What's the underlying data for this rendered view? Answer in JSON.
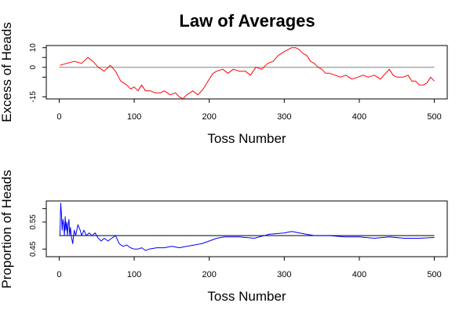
{
  "chart_data": [
    {
      "type": "line",
      "title": "Law of Averages",
      "xlabel": "Toss Number",
      "ylabel": "Excess of Heads",
      "xlim": [
        0,
        500
      ],
      "ylim": [
        -15,
        10
      ],
      "xticks": [
        0,
        100,
        200,
        300,
        400,
        500
      ],
      "yticks": [
        -15,
        -5,
        0,
        5,
        10
      ],
      "ytick_labels": [
        "-15",
        "",
        "0",
        "",
        "10"
      ],
      "reference_line": 0,
      "line_color": "#ff0000",
      "reference_color": "#808080",
      "series": [
        {
          "x": [
            1,
            10,
            20,
            30,
            38,
            45,
            52,
            60,
            68,
            75,
            82,
            90,
            95,
            100,
            105,
            110,
            115,
            122,
            128,
            135,
            140,
            148,
            155,
            160,
            165,
            170,
            178,
            185,
            192,
            200,
            205,
            210,
            218,
            225,
            232,
            240,
            248,
            255,
            262,
            270,
            278,
            285,
            292,
            300,
            305,
            310,
            315,
            320,
            325,
            330,
            335,
            340,
            345,
            350,
            355,
            360,
            368,
            375,
            382,
            390,
            398,
            405,
            412,
            420,
            428,
            435,
            440,
            445,
            450,
            458,
            465,
            470,
            475,
            480,
            485,
            490,
            495,
            500
          ],
          "y": [
            1,
            2,
            3,
            2,
            5,
            3,
            0,
            -2,
            1,
            -2,
            -7,
            -9,
            -11,
            -10,
            -12,
            -9,
            -12,
            -12,
            -13,
            -13,
            -12,
            -14,
            -13,
            -15,
            -16,
            -14,
            -12,
            -14,
            -11,
            -6,
            -3,
            -2,
            -1,
            -3,
            -1,
            -2,
            -2,
            -4,
            0,
            -1,
            2,
            3,
            6,
            8,
            9,
            10,
            10,
            9,
            7,
            6,
            3,
            2,
            0,
            -1,
            -3,
            -3,
            -4,
            -5,
            -4,
            -6,
            -5,
            -4,
            -5,
            -4,
            -6,
            -3,
            -1,
            -4,
            -5,
            -5,
            -4,
            -7,
            -7,
            -9,
            -9,
            -8,
            -5,
            -7
          ]
        }
      ]
    },
    {
      "type": "line",
      "xlabel": "Toss Number",
      "ylabel": "Proportion of Heads",
      "xlim": [
        0,
        500
      ],
      "ylim": [
        0.43,
        0.62
      ],
      "xticks": [
        0,
        100,
        200,
        300,
        400,
        500
      ],
      "yticks": [
        0.45,
        0.55,
        0.6
      ],
      "ytick_labels": [
        "0.45",
        "0.55",
        ""
      ],
      "reference_line": 0.5,
      "line_color": "#0000ff",
      "reference_color": "#000000",
      "series": [
        {
          "x": [
            1,
            2,
            3,
            4,
            5,
            6,
            7,
            8,
            9,
            10,
            11,
            12,
            13,
            14,
            15,
            16,
            18,
            20,
            22,
            25,
            28,
            30,
            33,
            36,
            40,
            44,
            48,
            52,
            56,
            60,
            65,
            70,
            75,
            80,
            85,
            90,
            95,
            100,
            105,
            110,
            115,
            120,
            130,
            140,
            150,
            160,
            170,
            180,
            190,
            200,
            210,
            220,
            240,
            260,
            280,
            300,
            310,
            320,
            340,
            360,
            380,
            400,
            420,
            440,
            460,
            480,
            500
          ],
          "y": [
            0.5,
            0.62,
            0.58,
            0.52,
            0.56,
            0.54,
            0.5,
            0.57,
            0.52,
            0.55,
            0.5,
            0.54,
            0.56,
            0.5,
            0.53,
            0.5,
            0.47,
            0.52,
            0.5,
            0.54,
            0.52,
            0.5,
            0.52,
            0.5,
            0.51,
            0.5,
            0.51,
            0.49,
            0.48,
            0.49,
            0.48,
            0.49,
            0.5,
            0.47,
            0.46,
            0.465,
            0.455,
            0.45,
            0.45,
            0.455,
            0.445,
            0.45,
            0.455,
            0.455,
            0.46,
            0.455,
            0.46,
            0.465,
            0.47,
            0.48,
            0.49,
            0.495,
            0.495,
            0.49,
            0.505,
            0.51,
            0.515,
            0.51,
            0.5,
            0.5,
            0.495,
            0.495,
            0.49,
            0.495,
            0.49,
            0.49,
            0.493
          ]
        }
      ]
    }
  ]
}
